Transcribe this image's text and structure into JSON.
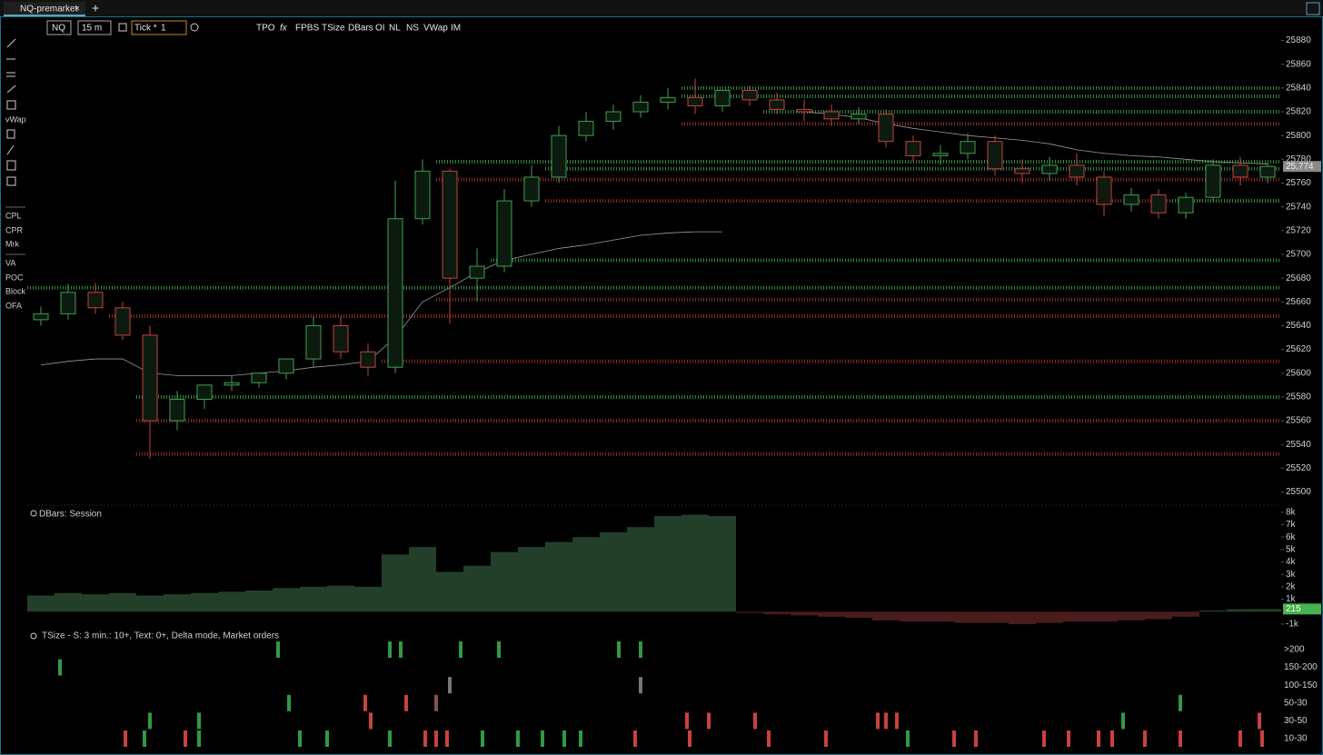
{
  "tab": {
    "title": "NQ-premarket"
  },
  "toolbar": {
    "symbol": "NQ",
    "timeframe": "15 m",
    "mode": "Tick *",
    "tick": "1",
    "buttons": [
      "TPO",
      "FPBS",
      "TSize",
      "DBars",
      "OI",
      "NL",
      "NS",
      "VWap",
      "IM"
    ]
  },
  "sidebar": [
    "vWap",
    "CPL",
    "CPR",
    "Mrk",
    "VA",
    "POC",
    "Block",
    "OFA"
  ],
  "price_chart": {
    "ylim": [
      25492,
      25885
    ],
    "yticks": [
      25500,
      25520,
      25540,
      25560,
      25580,
      25600,
      25620,
      25640,
      25660,
      25680,
      25700,
      25720,
      25740,
      25760,
      25780,
      25800,
      25820,
      25840,
      25860,
      25880
    ],
    "current_price": {
      "value": 25774,
      "label": "25,774"
    },
    "up_color": "#3f9f50",
    "down_color": "#c8413f",
    "open": [
      25645,
      25650,
      25668,
      25655,
      25632,
      25560,
      25578,
      25590,
      25592,
      25600,
      25612,
      25640,
      25618,
      25605,
      25730,
      25770,
      25680,
      25690,
      25745,
      25765,
      25800,
      25812,
      25820,
      25828,
      25832,
      25825,
      25838,
      25830,
      25822,
      25820,
      25814,
      25818,
      25795,
      25783,
      25785,
      25795,
      25772,
      25768,
      25775,
      25765,
      25742,
      25750,
      25735,
      25748,
      25775,
      25765
    ],
    "high": [
      25656,
      25675,
      25676,
      25660,
      25640,
      25585,
      25590,
      25598,
      25600,
      25610,
      25648,
      25648,
      25625,
      25762,
      25780,
      25772,
      25705,
      25755,
      25775,
      25808,
      25820,
      25826,
      25834,
      25840,
      25848,
      25836,
      25842,
      25836,
      25830,
      25826,
      25824,
      25822,
      25800,
      25792,
      25802,
      25800,
      25780,
      25782,
      25785,
      25770,
      25756,
      25755,
      25752,
      25780,
      25782,
      25777
    ],
    "low": [
      25640,
      25645,
      25650,
      25628,
      25528,
      25552,
      25570,
      25585,
      25588,
      25595,
      25605,
      25612,
      25598,
      25600,
      25725,
      25642,
      25660,
      25685,
      25740,
      25760,
      25795,
      25805,
      25815,
      25822,
      25818,
      25820,
      25825,
      25818,
      25812,
      25808,
      25810,
      25790,
      25778,
      25775,
      25780,
      25766,
      25760,
      25762,
      25758,
      25732,
      25736,
      25730,
      25730,
      25745,
      25758,
      25760
    ],
    "close": [
      25650,
      25668,
      25655,
      25632,
      25560,
      25578,
      25590,
      25592,
      25600,
      25612,
      25640,
      25618,
      25605,
      25730,
      25770,
      25680,
      25690,
      25745,
      25765,
      25800,
      25812,
      25820,
      25828,
      25832,
      25825,
      25838,
      25830,
      25822,
      25820,
      25814,
      25818,
      25795,
      25783,
      25785,
      25795,
      25772,
      25768,
      25775,
      25765,
      25742,
      25750,
      25735,
      25748,
      25775,
      25765,
      25774
    ],
    "vwap": [
      25607,
      25610,
      25612,
      25612,
      25600,
      25598,
      25598,
      25598,
      25600,
      25602,
      25605,
      25607,
      25610,
      25630,
      25660,
      25672,
      25685,
      25695,
      25700,
      25705,
      25708,
      25712,
      25716,
      25718,
      25719,
      25719,
      null,
      null,
      25820,
      25818,
      25815,
      25810,
      25806,
      25803,
      25800,
      25798,
      25796,
      25793,
      25788,
      25785,
      25783,
      25782,
      25780,
      25778,
      25777,
      25776
    ],
    "levels": [
      {
        "price": 25840,
        "from": 24,
        "color": "#2f8a3a"
      },
      {
        "price": 25833,
        "from": 24,
        "color": "#2f8a3a"
      },
      {
        "price": 25820,
        "from": 27,
        "color": "#2f8a3a"
      },
      {
        "price": 25810,
        "from": 24,
        "color": "#8a2a2a"
      },
      {
        "price": 25778,
        "from": 15,
        "color": "#2f8a3a"
      },
      {
        "price": 25772,
        "from": 19,
        "color": "#2f8a3a"
      },
      {
        "price": 25763,
        "from": 15,
        "color": "#8a2a2a"
      },
      {
        "price": 25745,
        "from": 19,
        "color": "#8a2a2a"
      },
      {
        "price": 25745,
        "from": 42,
        "color": "#2f8a3a"
      },
      {
        "price": 25695,
        "from": 17,
        "color": "#2f8a3a"
      },
      {
        "price": 25672,
        "from": 0,
        "color": "#2f8a3a"
      },
      {
        "price": 25662,
        "from": 15,
        "color": "#8a2a2a"
      },
      {
        "price": 25648,
        "from": 3,
        "color": "#8a2a2a"
      },
      {
        "price": 25610,
        "from": 13,
        "color": "#8a2a2a"
      },
      {
        "price": 25580,
        "from": 4,
        "color": "#2f8a3a"
      },
      {
        "price": 25560,
        "from": 4,
        "color": "#8a2a2a"
      },
      {
        "price": 25532,
        "from": 4,
        "color": "#8a2a2a"
      }
    ]
  },
  "dbars": {
    "title": "DBars: Session",
    "ylim": [
      -1150,
      8350
    ],
    "yticks": [
      {
        "value": 8000,
        "label": "8k"
      },
      {
        "value": 7000,
        "label": "7k"
      },
      {
        "value": 6000,
        "label": "6k"
      },
      {
        "value": 5000,
        "label": "5k"
      },
      {
        "value": 4000,
        "label": "4k"
      },
      {
        "value": 3000,
        "label": "3k"
      },
      {
        "value": 2000,
        "label": "2k"
      },
      {
        "value": 1000,
        "label": "1k"
      },
      {
        "value": -1000,
        "label": "-1k"
      }
    ],
    "pos_color": "#243f29",
    "neg_color": "#4a1c1c",
    "values": [
      1300,
      1500,
      1400,
      1500,
      1300,
      1400,
      1500,
      1600,
      1700,
      1900,
      2000,
      2100,
      2000,
      4600,
      5200,
      3200,
      3700,
      4800,
      5200,
      5600,
      6000,
      6400,
      6800,
      7700,
      7800,
      7700,
      -100,
      -200,
      -300,
      -400,
      -500,
      -700,
      -800,
      -800,
      -900,
      -900,
      -1000,
      -900,
      -800,
      -800,
      -700,
      -600,
      -400,
      100,
      200,
      215
    ]
  },
  "tsize": {
    "title": "TSize - S: 3 min.: 10+, Text: 0+, Delta mode,  Market orders",
    "rows": [
      ">200",
      "150-200",
      "100-150",
      "50-30",
      "30-50",
      "10-30"
    ],
    "trades": [
      {
        "t": 9.2,
        "row": 0,
        "color": "#2f9a43"
      },
      {
        "t": 13.3,
        "row": 0,
        "color": "#2f9a43"
      },
      {
        "t": 13.7,
        "row": 0,
        "color": "#2f9a43"
      },
      {
        "t": 15.9,
        "row": 0,
        "color": "#2f9a43"
      },
      {
        "t": 17.3,
        "row": 0,
        "color": "#2f9a43"
      },
      {
        "t": 21.7,
        "row": 0,
        "color": "#2f9a43"
      },
      {
        "t": 22.5,
        "row": 0,
        "color": "#2f9a43"
      },
      {
        "t": 1.2,
        "row": 1,
        "color": "#2f9a43"
      },
      {
        "t": 15.5,
        "row": 2,
        "color": "#777777"
      },
      {
        "t": 22.5,
        "row": 2,
        "color": "#777777"
      },
      {
        "t": 9.6,
        "row": 3,
        "color": "#2f9a43"
      },
      {
        "t": 12.4,
        "row": 3,
        "color": "#c8413f"
      },
      {
        "t": 13.9,
        "row": 3,
        "color": "#c8413f"
      },
      {
        "t": 15.0,
        "row": 3,
        "color": "#8a5050"
      },
      {
        "t": 42.3,
        "row": 3,
        "color": "#2f9a43"
      },
      {
        "t": 4.5,
        "row": 4,
        "color": "#2f9a43"
      },
      {
        "t": 6.3,
        "row": 4,
        "color": "#2f9a43"
      },
      {
        "t": 12.6,
        "row": 4,
        "color": "#c8413f"
      },
      {
        "t": 24.2,
        "row": 4,
        "color": "#c8413f"
      },
      {
        "t": 25.0,
        "row": 4,
        "color": "#c8413f"
      },
      {
        "t": 26.7,
        "row": 4,
        "color": "#c8413f"
      },
      {
        "t": 31.2,
        "row": 4,
        "color": "#c8413f"
      },
      {
        "t": 31.5,
        "row": 4,
        "color": "#c8413f"
      },
      {
        "t": 31.9,
        "row": 4,
        "color": "#c8413f"
      },
      {
        "t": 40.2,
        "row": 4,
        "color": "#2f9a43"
      },
      {
        "t": 45.2,
        "row": 4,
        "color": "#c8413f"
      },
      {
        "t": 3.6,
        "row": 5,
        "color": "#c8413f"
      },
      {
        "t": 4.3,
        "row": 5,
        "color": "#2f9a43"
      },
      {
        "t": 5.8,
        "row": 5,
        "color": "#c8413f"
      },
      {
        "t": 6.3,
        "row": 5,
        "color": "#2f9a43"
      },
      {
        "t": 10.0,
        "row": 5,
        "color": "#2f9a43"
      },
      {
        "t": 11.0,
        "row": 5,
        "color": "#2f9a43"
      },
      {
        "t": 13.3,
        "row": 5,
        "color": "#2f9a43"
      },
      {
        "t": 14.6,
        "row": 5,
        "color": "#c8413f"
      },
      {
        "t": 15.0,
        "row": 5,
        "color": "#c8413f"
      },
      {
        "t": 15.4,
        "row": 5,
        "color": "#c8413f"
      },
      {
        "t": 16.7,
        "row": 5,
        "color": "#2f9a43"
      },
      {
        "t": 18.0,
        "row": 5,
        "color": "#2f9a43"
      },
      {
        "t": 18.9,
        "row": 5,
        "color": "#2f9a43"
      },
      {
        "t": 19.7,
        "row": 5,
        "color": "#2f9a43"
      },
      {
        "t": 20.3,
        "row": 5,
        "color": "#2f9a43"
      },
      {
        "t": 22.3,
        "row": 5,
        "color": "#c8413f"
      },
      {
        "t": 24.3,
        "row": 5,
        "color": "#c8413f"
      },
      {
        "t": 27.2,
        "row": 5,
        "color": "#c8413f"
      },
      {
        "t": 29.3,
        "row": 5,
        "color": "#c8413f"
      },
      {
        "t": 32.3,
        "row": 5,
        "color": "#2f9a43"
      },
      {
        "t": 34.0,
        "row": 5,
        "color": "#c8413f"
      },
      {
        "t": 34.8,
        "row": 5,
        "color": "#c8413f"
      },
      {
        "t": 37.3,
        "row": 5,
        "color": "#c8413f"
      },
      {
        "t": 38.2,
        "row": 5,
        "color": "#c8413f"
      },
      {
        "t": 39.3,
        "row": 5,
        "color": "#c8413f"
      },
      {
        "t": 39.8,
        "row": 5,
        "color": "#c8413f"
      },
      {
        "t": 41.0,
        "row": 5,
        "color": "#c8413f"
      },
      {
        "t": 42.3,
        "row": 5,
        "color": "#c8413f"
      },
      {
        "t": 44.5,
        "row": 5,
        "color": "#c8413f"
      },
      {
        "t": 45.3,
        "row": 5,
        "color": "#c8413f"
      }
    ]
  }
}
